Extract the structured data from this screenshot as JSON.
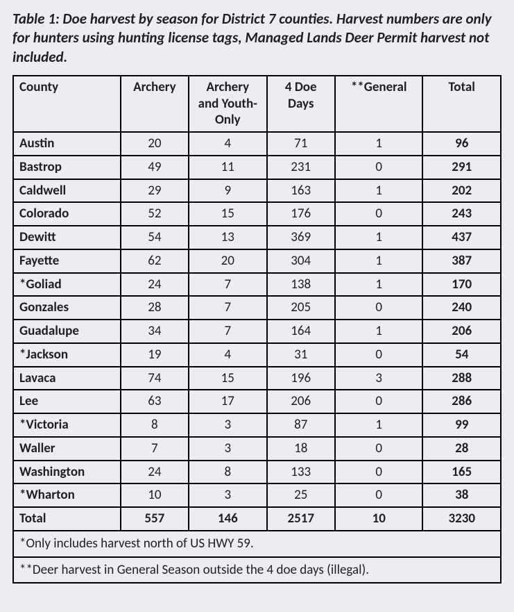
{
  "caption": "Table 1: Doe harvest by season for District 7 counties. Harvest numbers are only for hunters using hunting license tags, Managed Lands Deer Permit harvest not included.",
  "table": {
    "columns": [
      "County",
      "Archery",
      "Archery and Youth-Only",
      "4 Doe Days",
      "**General",
      "Total"
    ],
    "rows": [
      [
        "Austin",
        "20",
        "4",
        "71",
        "1",
        "96"
      ],
      [
        "Bastrop",
        "49",
        "11",
        "231",
        "0",
        "291"
      ],
      [
        "Caldwell",
        "29",
        "9",
        "163",
        "1",
        "202"
      ],
      [
        "Colorado",
        "52",
        "15",
        "176",
        "0",
        "243"
      ],
      [
        "Dewitt",
        "54",
        "13",
        "369",
        "1",
        "437"
      ],
      [
        "Fayette",
        "62",
        "20",
        "304",
        "1",
        "387"
      ],
      [
        "*Goliad",
        "24",
        "7",
        "138",
        "1",
        "170"
      ],
      [
        "Gonzales",
        "28",
        "7",
        "205",
        "0",
        "240"
      ],
      [
        "Guadalupe",
        "34",
        "7",
        "164",
        "1",
        "206"
      ],
      [
        "*Jackson",
        "19",
        "4",
        "31",
        "0",
        "54"
      ],
      [
        "Lavaca",
        "74",
        "15",
        "196",
        "3",
        "288"
      ],
      [
        "Lee",
        "63",
        "17",
        "206",
        "0",
        "286"
      ],
      [
        "*Victoria",
        "8",
        "3",
        "87",
        "1",
        "99"
      ],
      [
        "Waller",
        "7",
        "3",
        "18",
        "0",
        "28"
      ],
      [
        "Washington",
        "24",
        "8",
        "133",
        "0",
        "165"
      ],
      [
        "*Wharton",
        "10",
        "3",
        "25",
        "0",
        "38"
      ]
    ],
    "totals": [
      "Total",
      "557",
      "146",
      "2517",
      "10",
      "3230"
    ],
    "footnote1": "*Only includes harvest north of US HWY 59.",
    "footnote2": "**Deer harvest in General Season outside the 4 doe days (illegal).",
    "style": {
      "background_color": "#ebedf2",
      "border_color": "#000000",
      "text_color": "#1f1f1f",
      "caption_italic": true,
      "caption_bold": true,
      "font_family": "Calibri",
      "header_align": [
        "left",
        "center",
        "center",
        "center",
        "center",
        "center"
      ],
      "body_align": [
        "left",
        "center",
        "center",
        "center",
        "center",
        "center"
      ],
      "total_row_bold": true,
      "last_col_bold": true
    }
  }
}
